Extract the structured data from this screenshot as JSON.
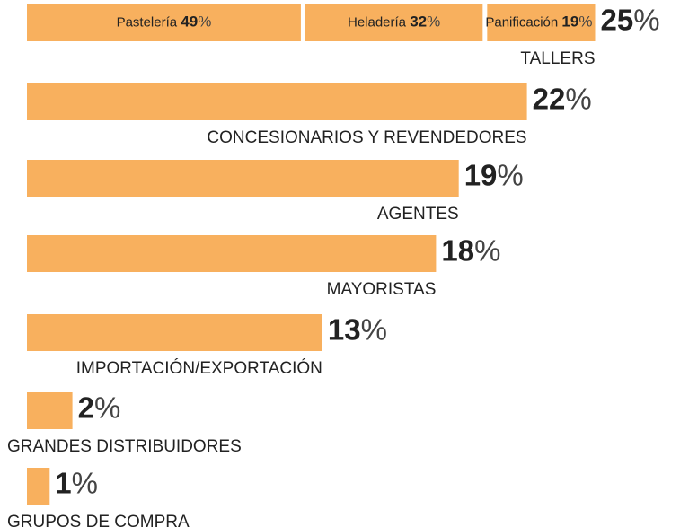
{
  "chart_data": {
    "type": "bar",
    "categories": [
      "TALLERS",
      "CONCESIONARIOS Y REVENDEDORES",
      "AGENTES",
      "MAYORISTAS",
      "IMPORTACIÓN/EXPORTACIÓN",
      "GRANDES DISTRIBUIDORES",
      "GRUPOS DE COMPRA"
    ],
    "values": [
      25,
      22,
      19,
      18,
      13,
      2,
      1
    ],
    "value_labels": [
      "25%",
      "22%",
      "19%",
      "18%",
      "13%",
      "2%",
      "1%"
    ],
    "color": "#f8b05e",
    "segments": [
      {
        "name": "Pastelería",
        "value": 49,
        "value_label": "49%"
      },
      {
        "name": "Heladería",
        "value": 32,
        "value_label": "32%"
      },
      {
        "name": "Panificación",
        "value": 19,
        "value_label": "19%"
      }
    ]
  }
}
